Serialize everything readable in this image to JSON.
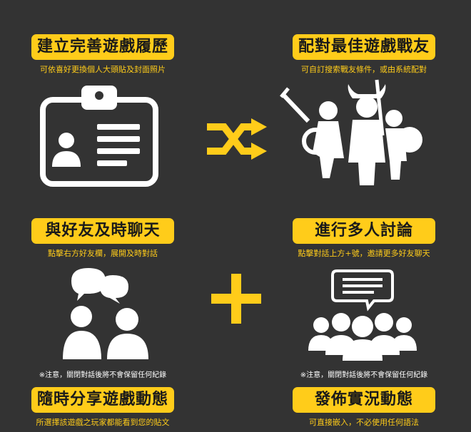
{
  "features": [
    {
      "title": "建立完善遊戲履歷",
      "desc": "可依喜好更換個人大頭貼及封面照片",
      "icon": "id-badge-icon"
    },
    {
      "title": "配對最佳遊戲戰友",
      "desc": "可自訂搜索戰友條件，或由系統配對",
      "icon": "warriors-group-icon"
    },
    {
      "title": "與好友及時聊天",
      "desc": "點擊右方好友欄，展開及時對話",
      "note": "※注意，關閉對話後將不會保留任何紀錄",
      "icon": "chat-two-people-icon"
    },
    {
      "title": "進行多人討論",
      "desc": "點擊對話上方+號，邀請更多好友聊天",
      "note": "※注意，關閉對話後將不會保留任何紀錄",
      "icon": "group-chat-icon"
    },
    {
      "title": "隨時分享遊戲動態",
      "desc": "所選擇該遊戲之玩家都能看到您的貼文"
    },
    {
      "title": "發佈實況動態",
      "desc": "可直接嵌入，不必使用任何語法"
    }
  ],
  "center_icons": [
    "shuffle-icon",
    "plus-icon"
  ],
  "colors": {
    "background": "#333333",
    "accent": "#ffcc1a",
    "icon": "#ffffff"
  }
}
